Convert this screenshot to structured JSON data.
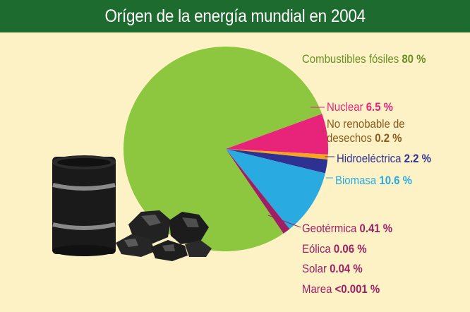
{
  "title": "Orígen de la energía mundial en 2004",
  "colors": {
    "header_bg": "#1d6b2e",
    "background": "#fdf2c6"
  },
  "chart_data": {
    "type": "pie",
    "title": "Orígen de la energía mundial en 2004",
    "unit": "%",
    "slices": [
      {
        "label": "Combustibles fósiles",
        "value_text": "80 %",
        "value": 80,
        "color": "#8dc63f",
        "label_color": "#6b8e23"
      },
      {
        "label": "Nuclear",
        "value_text": "6.5 %",
        "value": 6.5,
        "color": "#e8237a",
        "label_color": "#e8237a"
      },
      {
        "label": "No renobable de desechos",
        "label_line1": "No renobable de",
        "label_line2": "desechos",
        "value_text": "0.2 %",
        "value": 0.2,
        "color": "#f7a521",
        "label_color": "#8a5a1c"
      },
      {
        "label": "Hidroeléctrica",
        "value_text": "2.2 %",
        "value": 2.2,
        "color": "#2e3192",
        "label_color": "#2e3192"
      },
      {
        "label": "Biomasa",
        "value_text": "10.6 %",
        "value": 10.6,
        "color": "#29abe2",
        "label_color": "#29abe2"
      },
      {
        "label": "Geotérmica",
        "value_text": "0.41 %",
        "value": 0.41,
        "color": "#9e1f63",
        "label_color": "#9e1f63"
      },
      {
        "label": "Eólica",
        "value_text": "0.06 %",
        "value": 0.06,
        "color": "#9e1f63",
        "label_color": "#9e1f63"
      },
      {
        "label": "Solar",
        "value_text": "0.04 %",
        "value": 0.04,
        "color": "#9e1f63",
        "label_color": "#9e1f63"
      },
      {
        "label": "Marea",
        "value_text": "<0.001 %",
        "value": 0.001,
        "color": "#9e1f63",
        "label_color": "#9e1f63"
      }
    ]
  }
}
